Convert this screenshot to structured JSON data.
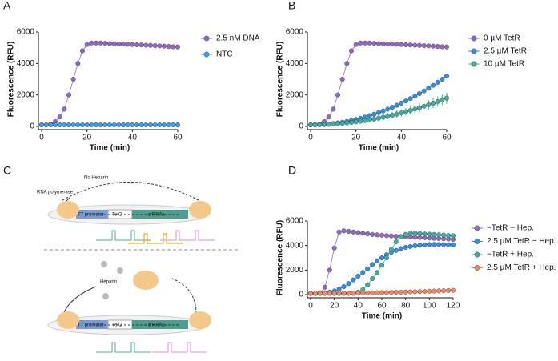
{
  "chart_data": [
    {
      "type": "line",
      "panel": "A",
      "xlabel": "Time (min)",
      "ylabel": "Fluorescence (RFU)",
      "x": [
        0,
        2,
        4,
        6,
        8,
        10,
        12,
        14,
        16,
        18,
        20,
        22,
        24,
        26,
        28,
        30,
        32,
        34,
        36,
        38,
        40,
        42,
        44,
        46,
        48,
        50,
        52,
        54,
        56,
        58,
        60
      ],
      "xlim": [
        0,
        60
      ],
      "xticks": [
        0,
        20,
        40,
        60
      ],
      "ylim": [
        0,
        6000
      ],
      "yticks": [
        0,
        2000,
        4000,
        6000
      ],
      "series": [
        {
          "name": "2.5 nM DNA",
          "color": "#8e6bbf",
          "values": [
            100,
            100,
            150,
            300,
            600,
            1100,
            2000,
            3000,
            4000,
            4800,
            5200,
            5300,
            5300,
            5300,
            5280,
            5260,
            5250,
            5240,
            5230,
            5220,
            5200,
            5190,
            5180,
            5160,
            5150,
            5130,
            5120,
            5100,
            5080,
            5060,
            5050
          ]
        },
        {
          "name": "NTC",
          "color": "#3aa0e8",
          "values": [
            100,
            100,
            100,
            100,
            100,
            100,
            100,
            100,
            100,
            100,
            100,
            100,
            100,
            100,
            100,
            100,
            100,
            100,
            100,
            100,
            100,
            100,
            100,
            100,
            100,
            100,
            100,
            100,
            100,
            100,
            100
          ]
        }
      ]
    },
    {
      "type": "line",
      "panel": "B",
      "xlabel": "Time (min)",
      "ylabel": "Fluorescence (RFU)",
      "x": [
        0,
        2,
        4,
        6,
        8,
        10,
        12,
        14,
        16,
        18,
        20,
        22,
        24,
        26,
        28,
        30,
        32,
        34,
        36,
        38,
        40,
        42,
        44,
        46,
        48,
        50,
        52,
        54,
        56,
        58,
        60
      ],
      "xlim": [
        0,
        60
      ],
      "xticks": [
        0,
        20,
        40,
        60
      ],
      "ylim": [
        0,
        6000
      ],
      "yticks": [
        0,
        2000,
        4000,
        6000
      ],
      "series": [
        {
          "name": "0 µM TetR",
          "color": "#8e6bbf",
          "values": [
            100,
            100,
            150,
            300,
            600,
            1100,
            2000,
            3000,
            4000,
            4800,
            5200,
            5300,
            5300,
            5300,
            5280,
            5260,
            5250,
            5240,
            5230,
            5220,
            5200,
            5190,
            5180,
            5160,
            5150,
            5130,
            5120,
            5100,
            5080,
            5060,
            5050
          ]
        },
        {
          "name": "2.5 µM TetR",
          "color": "#2f8fe0",
          "values": [
            100,
            103,
            114,
            131,
            155,
            186,
            224,
            269,
            320,
            379,
            444,
            517,
            596,
            682,
            775,
            875,
            982,
            1095,
            1216,
            1343,
            1478,
            1619,
            1768,
            1922,
            2084,
            2253,
            2428,
            2611,
            2800,
            2996,
            3200
          ]
        },
        {
          "name": "10 µM TetR",
          "color": "#3fae9e",
          "values": [
            100,
            102,
            108,
            117,
            130,
            147,
            168,
            193,
            221,
            253,
            289,
            329,
            372,
            419,
            470,
            525,
            584,
            646,
            712,
            782,
            856,
            933,
            1014,
            1099,
            1188,
            1281,
            1377,
            1477,
            1581,
            1689,
            1800
          ],
          "errors": [
            0,
            12,
            23,
            35,
            47,
            58,
            70,
            82,
            93,
            105,
            117,
            128,
            140,
            152,
            163,
            175,
            187,
            198,
            210,
            222,
            233,
            245,
            257,
            268,
            280,
            292,
            303,
            315,
            327,
            338,
            350
          ]
        }
      ]
    },
    {
      "type": "line",
      "panel": "D",
      "xlabel": "Time (min)",
      "ylabel": "Fluorescence (RFU)",
      "x": [
        0,
        4,
        8,
        12,
        16,
        20,
        24,
        28,
        32,
        36,
        40,
        44,
        48,
        52,
        56,
        60,
        64,
        68,
        72,
        76,
        80,
        84,
        88,
        92,
        96,
        100,
        104,
        108,
        112,
        116,
        120
      ],
      "xlim": [
        0,
        120
      ],
      "xticks": [
        0,
        20,
        40,
        60,
        80,
        100,
        120
      ],
      "ylim": [
        0,
        6000
      ],
      "yticks": [
        0,
        2000,
        4000,
        6000
      ],
      "series": [
        {
          "name": "−TetR − Hep.",
          "color": "#8e6bbf",
          "values": [
            100,
            100,
            150,
            600,
            2000,
            3800,
            5100,
            5200,
            5150,
            5100,
            5050,
            5000,
            4950,
            4900,
            4870,
            4840,
            4810,
            4780,
            4750,
            4730,
            4710,
            4690,
            4670,
            4650,
            4630,
            4610,
            4590,
            4570,
            4550,
            4530,
            4500
          ]
        },
        {
          "name": "2.5 µM TetR − Hep.",
          "color": "#2f8fe0",
          "values": [
            100,
            100,
            120,
            150,
            200,
            300,
            450,
            650,
            900,
            1200,
            1500,
            1800,
            2100,
            2450,
            2750,
            3000,
            3250,
            3450,
            3600,
            3750,
            3850,
            3920,
            3980,
            4020,
            4050,
            4080,
            4090,
            4080,
            4070,
            4060,
            4050
          ]
        },
        {
          "name": "−TetR + Hep.",
          "color": "#3fae9e",
          "values": [
            100,
            100,
            100,
            100,
            100,
            100,
            100,
            100,
            100,
            100,
            200,
            400,
            800,
            1300,
            1800,
            2400,
            3000,
            3700,
            4300,
            4700,
            4900,
            5000,
            5000,
            4980,
            4950,
            4920,
            4900,
            4870,
            4850,
            4820,
            4800
          ]
        },
        {
          "name": "2.5 µM TetR + Hep.",
          "color": "#f08866",
          "values": [
            100,
            100,
            101,
            103,
            104,
            107,
            110,
            114,
            118,
            123,
            128,
            134,
            140,
            147,
            154,
            163,
            171,
            180,
            190,
            200,
            211,
            223,
            234,
            247,
            260,
            274,
            288,
            303,
            318,
            334,
            350
          ]
        }
      ]
    }
  ],
  "diagram": {
    "panel": "C",
    "polymerase": "RNA polymerase",
    "no_heparin": "No Heparin",
    "heparin": "Heparin",
    "construct": [
      "T7 promoter",
      "TetO",
      "crRNAs"
    ]
  }
}
